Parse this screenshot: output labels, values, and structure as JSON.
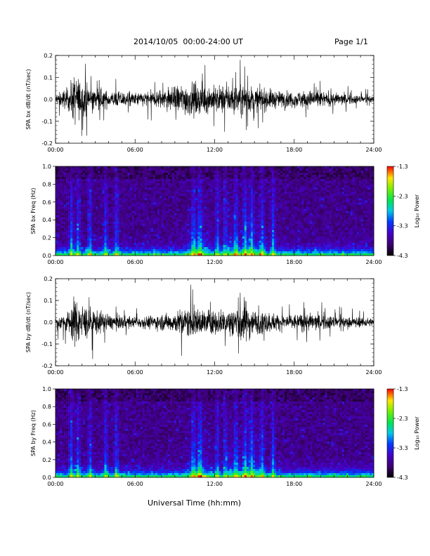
{
  "header": {
    "title": "2014/10/05  00:00-24:00 UT",
    "page": "Page 1/1"
  },
  "xaxis": {
    "title": "Universal Time (hh:mm)",
    "ticks": [
      "00:00",
      "06:00",
      "12:00",
      "18:00",
      "24:00"
    ]
  },
  "chart_data": [
    {
      "type": "line",
      "ylabel": "SPA bx dB/dt (nT/sec)",
      "ylim": [
        -0.2,
        0.2
      ],
      "yticks": [
        "0.2",
        "0.1",
        "0.0",
        "-0.1",
        "-0.2"
      ],
      "xlim_hours": [
        0,
        24
      ],
      "activity_profile": {
        "hour": [
          0,
          1,
          1.5,
          2,
          3,
          4,
          5,
          6,
          7,
          8,
          9,
          10,
          11,
          12,
          13,
          14,
          15,
          16,
          17,
          18,
          19,
          20,
          21,
          22,
          23,
          24
        ],
        "amplitude": [
          0.04,
          0.09,
          0.2,
          0.12,
          0.09,
          0.06,
          0.06,
          0.05,
          0.06,
          0.08,
          0.1,
          0.13,
          0.11,
          0.1,
          0.11,
          0.12,
          0.09,
          0.08,
          0.06,
          0.06,
          0.07,
          0.06,
          0.05,
          0.04,
          0.03,
          0.03
        ]
      }
    },
    {
      "type": "heatmap",
      "ylabel": "SPA bx Freq (Hz)",
      "ylim": [
        0.0,
        1.0
      ],
      "yticks": [
        "1.0",
        "0.8",
        "0.6",
        "0.4",
        "0.2",
        "0.0"
      ],
      "colorbar": {
        "label": "Log₁₀ Power",
        "ticks": [
          "-1.3",
          "-2.3",
          "-3.3",
          "-4.3"
        ],
        "range": [
          -4.3,
          -1.3
        ]
      }
    },
    {
      "type": "line",
      "ylabel": "SPA by dB/dt (nT/sec)",
      "ylim": [
        -0.2,
        0.2
      ],
      "yticks": [
        "0.2",
        "0.1",
        "0.0",
        "-0.1",
        "-0.2"
      ],
      "xlim_hours": [
        0,
        24
      ],
      "activity_profile": {
        "hour": [
          0,
          1,
          1.5,
          2,
          3,
          4,
          5,
          6,
          7,
          8,
          9,
          10,
          11,
          12,
          13,
          14,
          15,
          16,
          17,
          18,
          19,
          20,
          21,
          22,
          23,
          24
        ],
        "amplitude": [
          0.04,
          0.09,
          0.2,
          0.14,
          0.1,
          0.06,
          0.05,
          0.04,
          0.05,
          0.06,
          0.08,
          0.12,
          0.1,
          0.09,
          0.1,
          0.2,
          0.09,
          0.08,
          0.06,
          0.06,
          0.07,
          0.06,
          0.05,
          0.04,
          0.04,
          0.03
        ]
      }
    },
    {
      "type": "heatmap",
      "ylabel": "SPA by Freq (Hz)",
      "ylim": [
        0.0,
        1.0
      ],
      "yticks": [
        "1.0",
        "0.8",
        "0.6",
        "0.4",
        "0.2",
        "0.0"
      ],
      "colorbar": {
        "label": "Log₁₀ Power",
        "ticks": [
          "-1.3",
          "-2.3",
          "-3.3",
          "-4.3"
        ],
        "range": [
          -4.3,
          -1.3
        ]
      }
    }
  ]
}
